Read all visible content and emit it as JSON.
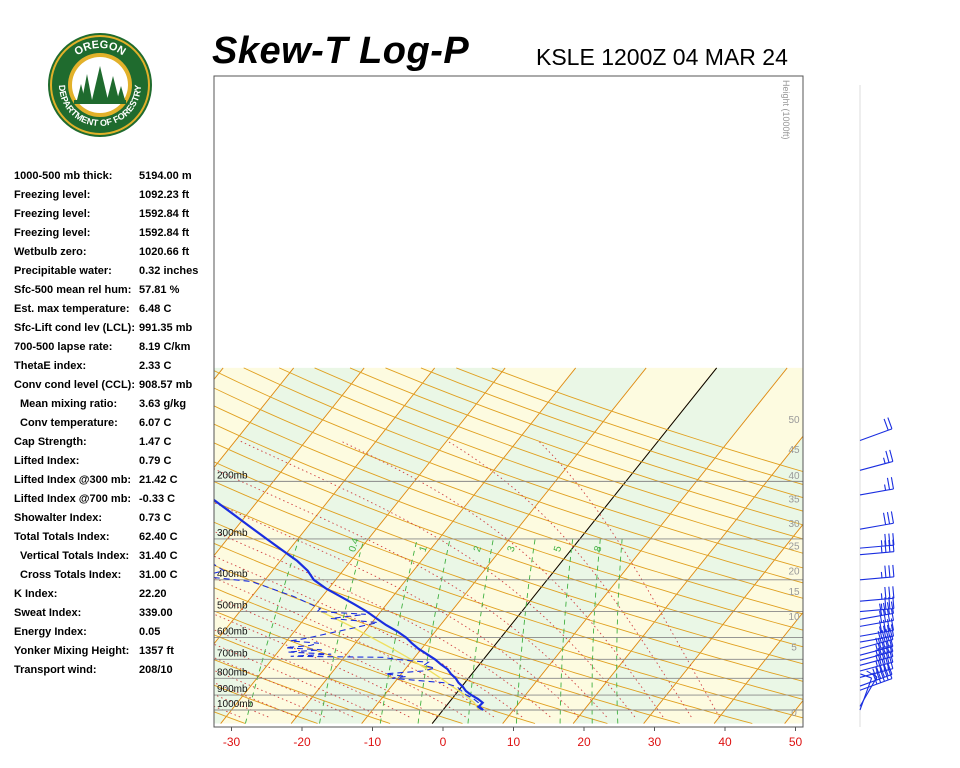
{
  "header": {
    "title": "Skew-T Log-P",
    "station": "KSLE 1200Z 04 MAR 24"
  },
  "logo": {
    "text_top": "OREGON",
    "text_ring": "DEPARTMENT OF FORESTRY",
    "colors": {
      "ring": "#1f6b2e",
      "gold": "#e2b12a",
      "tree": "#1f6b2e",
      "sky": "#ffffff"
    }
  },
  "parameters": [
    {
      "label": "1000-500 mb thick:",
      "value": "5194.00 m",
      "indent": false
    },
    {
      "label": "Freezing level:",
      "value": "1092.23 ft",
      "indent": false
    },
    {
      "label": "Freezing level:",
      "value": "1592.84 ft",
      "indent": false
    },
    {
      "label": "Freezing level:",
      "value": "1592.84 ft",
      "indent": false
    },
    {
      "label": "Wetbulb zero:",
      "value": "1020.66 ft",
      "indent": false
    },
    {
      "label": "Precipitable water:",
      "value": "0.32 inches",
      "indent": false
    },
    {
      "label": "Sfc-500 mean rel hum:",
      "value": "57.81 %",
      "indent": false
    },
    {
      "label": "Est. max temperature:",
      "value": "6.48 C",
      "indent": false
    },
    {
      "label": "Sfc-Lift cond lev (LCL):",
      "value": "991.35 mb",
      "indent": false
    },
    {
      "label": "700-500 lapse rate:",
      "value": "8.19 C/km",
      "indent": false
    },
    {
      "label": "ThetaE index:",
      "value": "2.33 C",
      "indent": false
    },
    {
      "label": "Conv cond level (CCL):",
      "value": "908.57 mb",
      "indent": false
    },
    {
      "label": "Mean mixing ratio:",
      "value": "3.63 g/kg",
      "indent": true
    },
    {
      "label": "Conv temperature:",
      "value": "6.07 C",
      "indent": true
    },
    {
      "label": "Cap Strength:",
      "value": "1.47 C",
      "indent": false
    },
    {
      "label": "Lifted Index:",
      "value": "0.79 C",
      "indent": false
    },
    {
      "label": "Lifted Index @300 mb:",
      "value": "21.42 C",
      "indent": false
    },
    {
      "label": "Lifted Index @700 mb:",
      "value": "-0.33 C",
      "indent": false
    },
    {
      "label": "Showalter Index:",
      "value": "0.73 C",
      "indent": false
    },
    {
      "label": "Total Totals Index:",
      "value": "62.40 C",
      "indent": false
    },
    {
      "label": "Vertical Totals Index:",
      "value": "31.40 C",
      "indent": true
    },
    {
      "label": "Cross Totals Index:",
      "value": "31.00 C",
      "indent": true
    },
    {
      "label": "K Index:",
      "value": "22.20",
      "indent": false
    },
    {
      "label": "Sweat Index:",
      "value": "339.00",
      "indent": false
    },
    {
      "label": "Energy Index:",
      "value": "0.05",
      "indent": false
    },
    {
      "label": "Yonker Mixing Height:",
      "value": "1357 ft",
      "indent": false
    },
    {
      "label": "Transport wind:",
      "value": "208/10",
      "indent": false
    }
  ],
  "chart_data": {
    "type": "line",
    "x_ticks": [
      "-30",
      "-20",
      "-10",
      "0",
      "10",
      "20",
      "30",
      "40",
      "50"
    ],
    "x_tick_values": [
      -30,
      -20,
      -10,
      0,
      10,
      20,
      30,
      40,
      50
    ],
    "pressure_levels": [
      {
        "p": 200,
        "label": "200mb"
      },
      {
        "p": 300,
        "label": "300mb"
      },
      {
        "p": 400,
        "label": "400mb"
      },
      {
        "p": 500,
        "label": "500mb"
      },
      {
        "p": 600,
        "label": "600mb"
      },
      {
        "p": 700,
        "label": "700mb"
      },
      {
        "p": 800,
        "label": "800mb"
      },
      {
        "p": 900,
        "label": "900mb"
      },
      {
        "p": 1000,
        "label": "1000mb"
      }
    ],
    "height_axis_label": "Height (1000ft)",
    "height_ticks": [
      {
        "label": "50",
        "p": 129
      },
      {
        "label": "45",
        "p": 159
      },
      {
        "label": "40",
        "p": 191
      },
      {
        "label": "35",
        "p": 226
      },
      {
        "label": "30",
        "p": 268
      },
      {
        "label": "25",
        "p": 314
      },
      {
        "label": "20",
        "p": 374
      },
      {
        "label": "15",
        "p": 433
      },
      {
        "label": "10",
        "p": 516
      },
      {
        "label": "5",
        "p": 640
      },
      {
        "label": "0",
        "p": 1013
      }
    ],
    "mixing_ratio_labels": [
      {
        "label": "0.4",
        "t": -30.4
      },
      {
        "label": "1",
        "t": -20.4
      },
      {
        "label": "2",
        "t": -12.7
      },
      {
        "label": "3",
        "t": -7.9
      },
      {
        "label": "5",
        "t": -1.3
      },
      {
        "label": "8",
        "t": 4.4
      }
    ],
    "temperature_profile": [
      [
        1000,
        5.7
      ],
      [
        975,
        4.7
      ],
      [
        950,
        4.8
      ],
      [
        925,
        3.7
      ],
      [
        900,
        2.3
      ],
      [
        875,
        1.1
      ],
      [
        850,
        0.2
      ],
      [
        825,
        -0.9
      ],
      [
        800,
        -1.8
      ],
      [
        775,
        -3.0
      ],
      [
        750,
        -4.0
      ],
      [
        725,
        -5.5
      ],
      [
        700,
        -6.9
      ],
      [
        675,
        -8.6
      ],
      [
        650,
        -10.4
      ],
      [
        625,
        -12.0
      ],
      [
        600,
        -13.5
      ],
      [
        575,
        -15.4
      ],
      [
        550,
        -17.7
      ],
      [
        525,
        -19.8
      ],
      [
        500,
        -22.0
      ],
      [
        475,
        -24.6
      ],
      [
        450,
        -27.4
      ],
      [
        425,
        -30.4
      ],
      [
        400,
        -33.1
      ],
      [
        375,
        -35.0
      ],
      [
        350,
        -37.6
      ],
      [
        325,
        -40.9
      ],
      [
        300,
        -44.4
      ],
      [
        275,
        -48.2
      ],
      [
        250,
        -52.3
      ],
      [
        225,
        -56.9
      ],
      [
        200,
        -61.7
      ],
      [
        175,
        -67.0
      ]
    ],
    "dewpoint_profile": [
      [
        1000,
        5.5
      ],
      [
        975,
        4.4
      ],
      [
        950,
        4.2
      ],
      [
        925,
        3.1
      ],
      [
        900,
        1.6
      ],
      [
        875,
        0.5
      ],
      [
        850,
        -0.6
      ],
      [
        825,
        -3.0
      ],
      [
        800,
        -10.8
      ],
      [
        790,
        -9.0
      ],
      [
        775,
        -12.3
      ],
      [
        760,
        -7.3
      ],
      [
        745,
        -5.9
      ],
      [
        730,
        -7.8
      ],
      [
        715,
        -7.5
      ],
      [
        700,
        -12.5
      ],
      [
        690,
        -14.5
      ],
      [
        685,
        -27.7
      ],
      [
        675,
        -22.2
      ],
      [
        665,
        -28.6
      ],
      [
        655,
        -24.0
      ],
      [
        645,
        -29.4
      ],
      [
        635,
        -26.2
      ],
      [
        625,
        -25.2
      ],
      [
        615,
        -29.5
      ],
      [
        605,
        -27.7
      ],
      [
        560,
        -21.8
      ],
      [
        540,
        -19.2
      ],
      [
        525,
        -26.3
      ],
      [
        510,
        -21.8
      ],
      [
        500,
        -29.0
      ],
      [
        490,
        -28.9
      ],
      [
        450,
        -34.0
      ],
      [
        405,
        -41.7
      ],
      [
        390,
        -49.4
      ],
      [
        375,
        -46.9
      ],
      [
        325,
        -53.7
      ],
      [
        275,
        -63.0
      ],
      [
        250,
        -64.8
      ],
      [
        225,
        -70.0
      ],
      [
        205,
        -78.2
      ],
      [
        180,
        -78.0
      ]
    ],
    "parcel_profile": [
      [
        1000,
        5.7
      ],
      [
        990,
        4.8
      ],
      [
        950,
        3.6
      ],
      [
        900,
        1.4
      ],
      [
        850,
        -1.2
      ],
      [
        800,
        -3.9
      ],
      [
        750,
        -6.9
      ],
      [
        700,
        -10.3
      ],
      [
        650,
        -14.1
      ],
      [
        600,
        -18.4
      ],
      [
        550,
        -23.0
      ],
      [
        500,
        -28.5
      ]
    ],
    "wind_barbs": [
      {
        "p": 1000,
        "dir": 200,
        "kt": 10
      },
      {
        "p": 975,
        "dir": 210,
        "kt": 10
      },
      {
        "p": 870,
        "dir": 250,
        "kt": 50
      },
      {
        "p": 845,
        "dir": 250,
        "kt": 50
      },
      {
        "p": 795,
        "dir": 255,
        "kt": 45
      },
      {
        "p": 760,
        "dir": 255,
        "kt": 45
      },
      {
        "p": 730,
        "dir": 255,
        "kt": 45
      },
      {
        "p": 705,
        "dir": 255,
        "kt": 45
      },
      {
        "p": 680,
        "dir": 255,
        "kt": 45
      },
      {
        "p": 648,
        "dir": 255,
        "kt": 45
      },
      {
        "p": 620,
        "dir": 260,
        "kt": 40
      },
      {
        "p": 595,
        "dir": 260,
        "kt": 40
      },
      {
        "p": 555,
        "dir": 260,
        "kt": 40
      },
      {
        "p": 528,
        "dir": 260,
        "kt": 40
      },
      {
        "p": 500,
        "dir": 265,
        "kt": 35
      },
      {
        "p": 465,
        "dir": 265,
        "kt": 35
      },
      {
        "p": 400,
        "dir": 265,
        "kt": 35
      },
      {
        "p": 335,
        "dir": 265,
        "kt": 35
      },
      {
        "p": 320,
        "dir": 265,
        "kt": 35
      },
      {
        "p": 280,
        "dir": 260,
        "kt": 30
      },
      {
        "p": 220,
        "dir": 260,
        "kt": 25
      },
      {
        "p": 185,
        "dir": 255,
        "kt": 25
      },
      {
        "p": 150,
        "dir": 250,
        "kt": 20
      }
    ],
    "colors": {
      "isotherm": "#e08a10",
      "dry_adiabat": "#e0a020",
      "moist_adiabat": "#d04040",
      "mixing_ratio": "#40b040",
      "isobar": "#888888",
      "temperature": "#1a2ee0",
      "dewpoint": "#1a2ee0",
      "parcel": "#f0e060",
      "barb": "#1a2ee0",
      "tick_text": "#dd1111",
      "band_yellow": "#fdfbe0",
      "band_green": "#eaf7e6"
    }
  }
}
